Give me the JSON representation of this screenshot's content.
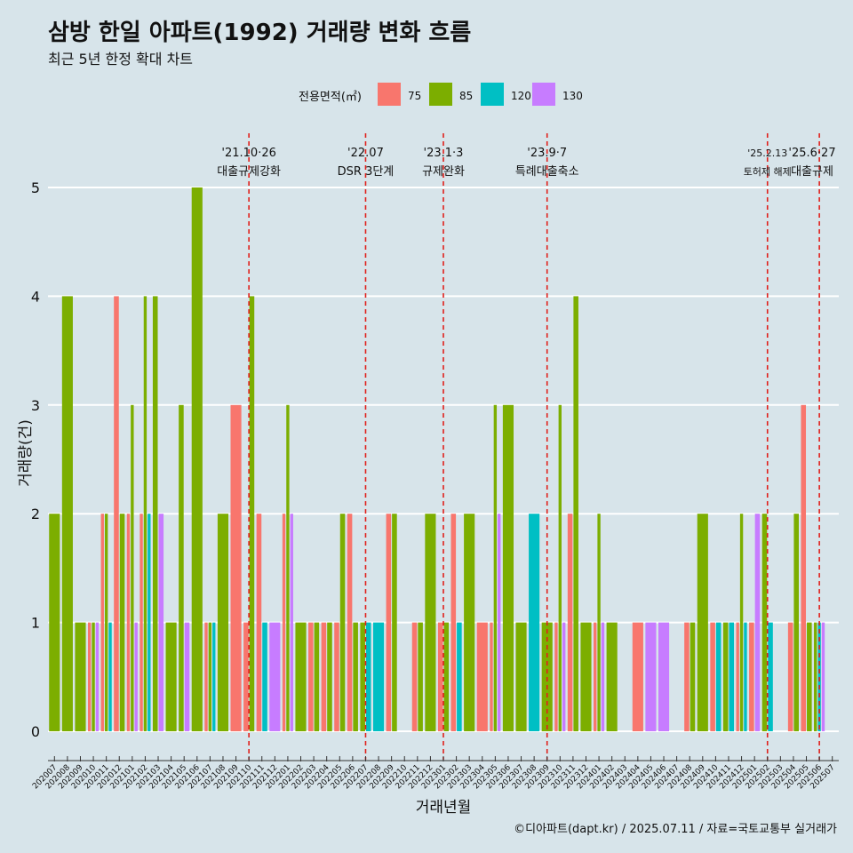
{
  "title": "삼방 한일 아파트(1992) 거래량 변화 흐름",
  "subtitle": "최근 5년 한정 확대 차트",
  "caption": "©디아파트(dapt.kr) / 2025.07.11 / 자료=국토교통부 실거래가",
  "colors": {
    "background": "#d7e4ea",
    "grid": "#ffffff",
    "event_line": "#e0201b"
  },
  "chart_data": {
    "type": "bar",
    "position": "dodge",
    "xlabel": "거래년월",
    "ylabel": "거래량(건)",
    "ylim": [
      0,
      5
    ],
    "yticks": [
      0,
      1,
      2,
      3,
      4,
      5
    ],
    "grid": true,
    "legend": {
      "title": "전용면적(㎡)",
      "placement": "top",
      "items": [
        {
          "name": "75",
          "color": "#f8766d"
        },
        {
          "name": "85",
          "color": "#7cae00"
        },
        {
          "name": "120",
          "color": "#00bfc4"
        },
        {
          "name": "130",
          "color": "#c77cff"
        }
      ]
    },
    "categories": [
      "202007",
      "202008",
      "202009",
      "202010",
      "202011",
      "202012",
      "202101",
      "202102",
      "202103",
      "202104",
      "202105",
      "202106",
      "202107",
      "202108",
      "202109",
      "202110",
      "202111",
      "202112",
      "202201",
      "202202",
      "202203",
      "202204",
      "202205",
      "202206",
      "202207",
      "202208",
      "202209",
      "202210",
      "202211",
      "202212",
      "202301",
      "202302",
      "202303",
      "202304",
      "202305",
      "202306",
      "202307",
      "202308",
      "202309",
      "202310",
      "202311",
      "202312",
      "202401",
      "202402",
      "202403",
      "202404",
      "202405",
      "202406",
      "202407",
      "202408",
      "202409",
      "202410",
      "202411",
      "202412",
      "202501",
      "202502",
      "202503",
      "202504",
      "202505",
      "202506",
      "202507"
    ],
    "bars": [
      {
        "month": "202007",
        "groups": [
          {
            "area": "85",
            "value": 2
          }
        ]
      },
      {
        "month": "202008",
        "groups": [
          {
            "area": "85",
            "value": 4
          }
        ]
      },
      {
        "month": "202009",
        "groups": [
          {
            "area": "85",
            "value": 1
          }
        ]
      },
      {
        "month": "202010",
        "groups": [
          {
            "area": "75",
            "value": 1
          },
          {
            "area": "85",
            "value": 1
          },
          {
            "area": "130",
            "value": 1
          }
        ]
      },
      {
        "month": "202011",
        "groups": [
          {
            "area": "75",
            "value": 2
          },
          {
            "area": "85",
            "value": 2
          },
          {
            "area": "120",
            "value": 1
          }
        ]
      },
      {
        "month": "202012",
        "groups": [
          {
            "area": "75",
            "value": 4
          },
          {
            "area": "85",
            "value": 2
          }
        ]
      },
      {
        "month": "202101",
        "groups": [
          {
            "area": "75",
            "value": 2
          },
          {
            "area": "85",
            "value": 3
          },
          {
            "area": "130",
            "value": 1
          }
        ]
      },
      {
        "month": "202102",
        "groups": [
          {
            "area": "75",
            "value": 2
          },
          {
            "area": "85",
            "value": 4
          },
          {
            "area": "120",
            "value": 2
          }
        ]
      },
      {
        "month": "202103",
        "groups": [
          {
            "area": "85",
            "value": 4
          },
          {
            "area": "130",
            "value": 2
          }
        ]
      },
      {
        "month": "202104",
        "groups": [
          {
            "area": "85",
            "value": 1
          }
        ]
      },
      {
        "month": "202105",
        "groups": [
          {
            "area": "85",
            "value": 3
          },
          {
            "area": "130",
            "value": 1
          }
        ]
      },
      {
        "month": "202106",
        "groups": [
          {
            "area": "85",
            "value": 5
          }
        ]
      },
      {
        "month": "202107",
        "groups": [
          {
            "area": "75",
            "value": 1
          },
          {
            "area": "85",
            "value": 1
          },
          {
            "area": "120",
            "value": 1
          }
        ]
      },
      {
        "month": "202108",
        "groups": [
          {
            "area": "85",
            "value": 2
          }
        ]
      },
      {
        "month": "202109",
        "groups": [
          {
            "area": "75",
            "value": 3
          }
        ]
      },
      {
        "month": "202110",
        "groups": [
          {
            "area": "75",
            "value": 1
          },
          {
            "area": "85",
            "value": 4
          }
        ]
      },
      {
        "month": "202111",
        "groups": [
          {
            "area": "75",
            "value": 2
          },
          {
            "area": "120",
            "value": 1
          }
        ]
      },
      {
        "month": "202112",
        "groups": [
          {
            "area": "130",
            "value": 1
          }
        ]
      },
      {
        "month": "202201",
        "groups": [
          {
            "area": "75",
            "value": 2
          },
          {
            "area": "85",
            "value": 3
          },
          {
            "area": "130",
            "value": 2
          }
        ]
      },
      {
        "month": "202202",
        "groups": [
          {
            "area": "85",
            "value": 1
          }
        ]
      },
      {
        "month": "202203",
        "groups": [
          {
            "area": "75",
            "value": 1
          },
          {
            "area": "85",
            "value": 1
          }
        ]
      },
      {
        "month": "202204",
        "groups": [
          {
            "area": "75",
            "value": 1
          },
          {
            "area": "85",
            "value": 1
          }
        ]
      },
      {
        "month": "202205",
        "groups": [
          {
            "area": "75",
            "value": 1
          },
          {
            "area": "85",
            "value": 2
          }
        ]
      },
      {
        "month": "202206",
        "groups": [
          {
            "area": "75",
            "value": 2
          },
          {
            "area": "85",
            "value": 1
          }
        ]
      },
      {
        "month": "202207",
        "groups": [
          {
            "area": "85",
            "value": 1
          },
          {
            "area": "120",
            "value": 1
          }
        ]
      },
      {
        "month": "202208",
        "groups": [
          {
            "area": "120",
            "value": 1
          }
        ]
      },
      {
        "month": "202209",
        "groups": [
          {
            "area": "75",
            "value": 2
          },
          {
            "area": "85",
            "value": 2
          }
        ]
      },
      {
        "month": "202210",
        "groups": []
      },
      {
        "month": "202211",
        "groups": [
          {
            "area": "75",
            "value": 1
          },
          {
            "area": "85",
            "value": 1
          }
        ]
      },
      {
        "month": "202212",
        "groups": [
          {
            "area": "85",
            "value": 2
          }
        ]
      },
      {
        "month": "202301",
        "groups": [
          {
            "area": "75",
            "value": 1
          },
          {
            "area": "85",
            "value": 1
          }
        ]
      },
      {
        "month": "202302",
        "groups": [
          {
            "area": "75",
            "value": 2
          },
          {
            "area": "120",
            "value": 1
          }
        ]
      },
      {
        "month": "202303",
        "groups": [
          {
            "area": "85",
            "value": 2
          }
        ]
      },
      {
        "month": "202304",
        "groups": [
          {
            "area": "75",
            "value": 1
          }
        ]
      },
      {
        "month": "202305",
        "groups": [
          {
            "area": "75",
            "value": 1
          },
          {
            "area": "85",
            "value": 3
          },
          {
            "area": "130",
            "value": 2
          }
        ]
      },
      {
        "month": "202306",
        "groups": [
          {
            "area": "85",
            "value": 3
          }
        ]
      },
      {
        "month": "202307",
        "groups": [
          {
            "area": "85",
            "value": 1
          }
        ]
      },
      {
        "month": "202308",
        "groups": [
          {
            "area": "120",
            "value": 2
          }
        ]
      },
      {
        "month": "202309",
        "groups": [
          {
            "area": "85",
            "value": 1
          }
        ]
      },
      {
        "month": "202310",
        "groups": [
          {
            "area": "75",
            "value": 1
          },
          {
            "area": "85",
            "value": 3
          },
          {
            "area": "130",
            "value": 1
          }
        ]
      },
      {
        "month": "202311",
        "groups": [
          {
            "area": "75",
            "value": 2
          },
          {
            "area": "85",
            "value": 4
          }
        ]
      },
      {
        "month": "202312",
        "groups": [
          {
            "area": "85",
            "value": 1
          }
        ]
      },
      {
        "month": "202401",
        "groups": [
          {
            "area": "75",
            "value": 1
          },
          {
            "area": "85",
            "value": 2
          },
          {
            "area": "130",
            "value": 1
          }
        ]
      },
      {
        "month": "202402",
        "groups": [
          {
            "area": "85",
            "value": 1
          }
        ]
      },
      {
        "month": "202403",
        "groups": []
      },
      {
        "month": "202404",
        "groups": [
          {
            "area": "75",
            "value": 1
          }
        ]
      },
      {
        "month": "202405",
        "groups": [
          {
            "area": "130",
            "value": 1
          }
        ]
      },
      {
        "month": "202406",
        "groups": [
          {
            "area": "130",
            "value": 1
          }
        ]
      },
      {
        "month": "202407",
        "groups": []
      },
      {
        "month": "202408",
        "groups": [
          {
            "area": "75",
            "value": 1
          },
          {
            "area": "85",
            "value": 1
          }
        ]
      },
      {
        "month": "202409",
        "groups": [
          {
            "area": "85",
            "value": 2
          }
        ]
      },
      {
        "month": "202410",
        "groups": [
          {
            "area": "75",
            "value": 1
          },
          {
            "area": "120",
            "value": 1
          }
        ]
      },
      {
        "month": "202411",
        "groups": [
          {
            "area": "85",
            "value": 1
          },
          {
            "area": "120",
            "value": 1
          }
        ]
      },
      {
        "month": "202412",
        "groups": [
          {
            "area": "75",
            "value": 1
          },
          {
            "area": "85",
            "value": 2
          },
          {
            "area": "120",
            "value": 1
          }
        ]
      },
      {
        "month": "202501",
        "groups": [
          {
            "area": "75",
            "value": 1
          },
          {
            "area": "130",
            "value": 2
          }
        ]
      },
      {
        "month": "202502",
        "groups": [
          {
            "area": "85",
            "value": 2
          },
          {
            "area": "120",
            "value": 1
          }
        ]
      },
      {
        "month": "202503",
        "groups": []
      },
      {
        "month": "202504",
        "groups": [
          {
            "area": "75",
            "value": 1
          },
          {
            "area": "85",
            "value": 2
          }
        ]
      },
      {
        "month": "202505",
        "groups": [
          {
            "area": "75",
            "value": 3
          },
          {
            "area": "85",
            "value": 1
          }
        ]
      },
      {
        "month": "202506",
        "groups": [
          {
            "area": "85",
            "value": 1
          },
          {
            "area": "120",
            "value": 1
          },
          {
            "area": "130",
            "value": 1
          }
        ]
      },
      {
        "month": "202507",
        "groups": []
      }
    ],
    "events": [
      {
        "month": "202110",
        "date": "'21.10·26",
        "label": "대출규제강화"
      },
      {
        "month": "202207",
        "date": "'22.07",
        "label": "DSR 3단계"
      },
      {
        "month": "202301",
        "date": "'23.1·3",
        "label": "규제완화"
      },
      {
        "month": "202309",
        "date": "'23.9·7",
        "label": "특례대출축소"
      },
      {
        "month": "202502",
        "date": "'25.2.13",
        "label": "토허제 해제"
      },
      {
        "month": "202506",
        "date": "'25.6·27",
        "label": "대출규제"
      }
    ]
  }
}
